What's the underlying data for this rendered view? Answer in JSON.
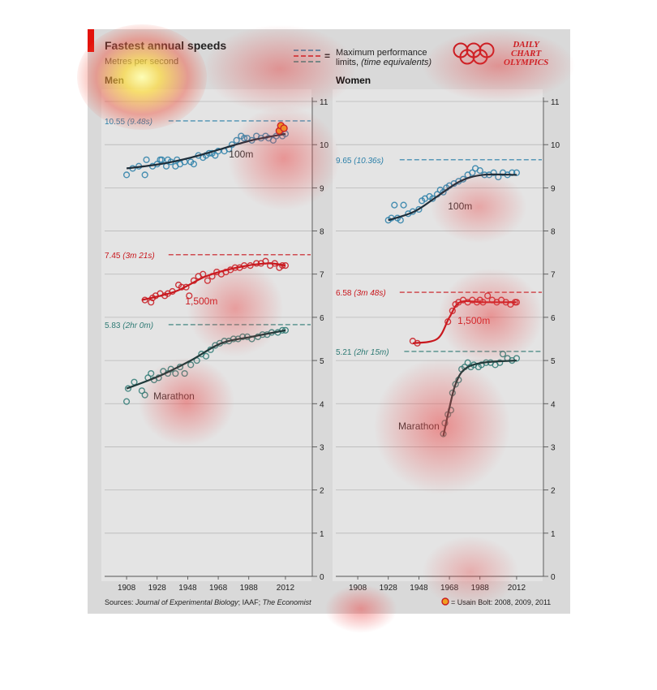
{
  "header": {
    "title": "Fastest annual speeds",
    "subtitle": "Metres per second",
    "men_label": "Men",
    "women_label": "Women"
  },
  "legend": {
    "equals": "=",
    "line1": "Maximum performance",
    "line2_prefix": "limits, ",
    "line2_italic": "(time equivalents)",
    "dash_colors": [
      "#2a7fa8",
      "#c8181e",
      "#2a8a86"
    ]
  },
  "logo": {
    "line1": "DAILY",
    "line2": "CHART",
    "line3": "OLYMPICS",
    "ring_color": "#c8181e"
  },
  "footer": {
    "source_prefix": "Sources: ",
    "source_italic1": "Journal of Experimental Biology",
    "source_mid": "; IAAF; ",
    "source_italic2": "The Economist",
    "bolt_note": "= Usain Bolt: 2008, 2009, 2011"
  },
  "colors": {
    "sprint": "#2a7fa8",
    "middle": "#c8181e",
    "marathon": "#2e7a74",
    "trend": "#1e2e3a",
    "bolt_fill": "#f0a020"
  },
  "chart_data": [
    {
      "type": "scatter",
      "panel": "Men",
      "xlim": [
        1900,
        2020
      ],
      "ylim": [
        0,
        11
      ],
      "x_ticks": [
        1908,
        1928,
        1948,
        1968,
        1988,
        2012
      ],
      "y_ticks": [
        0,
        1,
        2,
        3,
        4,
        5,
        6,
        7,
        8,
        9,
        10,
        11
      ],
      "limits": [
        {
          "event": "100m",
          "value": 10.55,
          "label": "10.55",
          "time": "(9.48s)",
          "color": "#2a7fa8"
        },
        {
          "event": "1,500m",
          "value": 7.45,
          "label": "7.45",
          "time": "(3m 21s)",
          "color": "#c8181e"
        },
        {
          "event": "Marathon",
          "value": 5.83,
          "label": "5.83",
          "time": "(2hr 0m)",
          "color": "#2e7a74"
        }
      ],
      "series": [
        {
          "name": "100m",
          "color": "#2a7fa8",
          "points": [
            [
              1908,
              9.3
            ],
            [
              1912,
              9.45
            ],
            [
              1916,
              9.5
            ],
            [
              1920,
              9.3
            ],
            [
              1921,
              9.65
            ],
            [
              1925,
              9.5
            ],
            [
              1928,
              9.55
            ],
            [
              1930,
              9.65
            ],
            [
              1931,
              9.65
            ],
            [
              1934,
              9.5
            ],
            [
              1935,
              9.65
            ],
            [
              1937,
              9.6
            ],
            [
              1940,
              9.5
            ],
            [
              1941,
              9.65
            ],
            [
              1943,
              9.55
            ],
            [
              1946,
              9.6
            ],
            [
              1950,
              9.6
            ],
            [
              1952,
              9.55
            ],
            [
              1955,
              9.75
            ],
            [
              1958,
              9.7
            ],
            [
              1960,
              9.75
            ],
            [
              1962,
              9.8
            ],
            [
              1964,
              9.8
            ],
            [
              1966,
              9.75
            ],
            [
              1968,
              9.85
            ],
            [
              1972,
              9.85
            ],
            [
              1975,
              9.9
            ],
            [
              1977,
              10.0
            ],
            [
              1980,
              10.1
            ],
            [
              1983,
              10.2
            ],
            [
              1985,
              10.15
            ],
            [
              1987,
              10.15
            ],
            [
              1990,
              10.1
            ],
            [
              1993,
              10.2
            ],
            [
              1996,
              10.15
            ],
            [
              1999,
              10.2
            ],
            [
              2001,
              10.15
            ],
            [
              2004,
              10.1
            ],
            [
              2006,
              10.2
            ],
            [
              2010,
              10.2
            ],
            [
              2012,
              10.25
            ]
          ],
          "label_x": 1983,
          "label_y": 9.7,
          "trend": [
            [
              1908,
              9.45
            ],
            [
              1930,
              9.55
            ],
            [
              1950,
              9.7
            ],
            [
              1970,
              9.9
            ],
            [
              1990,
              10.1
            ],
            [
              2012,
              10.25
            ]
          ]
        },
        {
          "name": "1,500m",
          "color": "#c8181e",
          "points": [
            [
              1920,
              6.4
            ],
            [
              1924,
              6.35
            ],
            [
              1925,
              6.45
            ],
            [
              1927,
              6.5
            ],
            [
              1930,
              6.55
            ],
            [
              1933,
              6.5
            ],
            [
              1935,
              6.55
            ],
            [
              1938,
              6.6
            ],
            [
              1942,
              6.75
            ],
            [
              1944,
              6.7
            ],
            [
              1947,
              6.7
            ],
            [
              1949,
              6.5
            ],
            [
              1952,
              6.85
            ],
            [
              1955,
              6.95
            ],
            [
              1958,
              7.0
            ],
            [
              1961,
              6.85
            ],
            [
              1964,
              6.95
            ],
            [
              1967,
              7.05
            ],
            [
              1970,
              7.0
            ],
            [
              1973,
              7.05
            ],
            [
              1976,
              7.1
            ],
            [
              1979,
              7.15
            ],
            [
              1982,
              7.15
            ],
            [
              1985,
              7.2
            ],
            [
              1989,
              7.2
            ],
            [
              1993,
              7.25
            ],
            [
              1996,
              7.25
            ],
            [
              1999,
              7.3
            ],
            [
              2002,
              7.2
            ],
            [
              2005,
              7.25
            ],
            [
              2008,
              7.15
            ],
            [
              2010,
              7.2
            ],
            [
              2012,
              7.2
            ]
          ],
          "label_x": 1957,
          "label_y": 6.3,
          "trend": [
            [
              1918,
              6.4
            ],
            [
              1940,
              6.6
            ],
            [
              1960,
              6.95
            ],
            [
              1980,
              7.15
            ],
            [
              2000,
              7.25
            ],
            [
              2012,
              7.2
            ]
          ]
        },
        {
          "name": "Marathon",
          "color": "#2e7a74",
          "points": [
            [
              1908,
              4.05
            ],
            [
              1909,
              4.35
            ],
            [
              1913,
              4.5
            ],
            [
              1918,
              4.3
            ],
            [
              1920,
              4.2
            ],
            [
              1922,
              4.6
            ],
            [
              1924,
              4.7
            ],
            [
              1926,
              4.55
            ],
            [
              1929,
              4.6
            ],
            [
              1932,
              4.75
            ],
            [
              1935,
              4.7
            ],
            [
              1937,
              4.8
            ],
            [
              1940,
              4.7
            ],
            [
              1943,
              4.85
            ],
            [
              1946,
              4.7
            ],
            [
              1950,
              4.9
            ],
            [
              1954,
              5.0
            ],
            [
              1957,
              5.15
            ],
            [
              1960,
              5.1
            ],
            [
              1963,
              5.25
            ],
            [
              1966,
              5.35
            ],
            [
              1969,
              5.4
            ],
            [
              1972,
              5.45
            ],
            [
              1975,
              5.45
            ],
            [
              1978,
              5.5
            ],
            [
              1981,
              5.5
            ],
            [
              1984,
              5.55
            ],
            [
              1987,
              5.55
            ],
            [
              1990,
              5.5
            ],
            [
              1994,
              5.55
            ],
            [
              1997,
              5.6
            ],
            [
              2000,
              5.6
            ],
            [
              2003,
              5.65
            ],
            [
              2007,
              5.65
            ],
            [
              2010,
              5.7
            ],
            [
              2012,
              5.7
            ]
          ],
          "label_x": 1939,
          "label_y": 4.1,
          "trend": [
            [
              1908,
              4.35
            ],
            [
              1930,
              4.65
            ],
            [
              1950,
              5.0
            ],
            [
              1970,
              5.4
            ],
            [
              1990,
              5.55
            ],
            [
              2012,
              5.7
            ]
          ]
        }
      ],
      "highlight": {
        "name": "Usain Bolt",
        "points": [
          [
            2008,
            10.32
          ],
          [
            2009,
            10.44
          ],
          [
            2011,
            10.38
          ]
        ]
      }
    },
    {
      "type": "scatter",
      "panel": "Women",
      "xlim": [
        1900,
        2020
      ],
      "ylim": [
        0,
        11
      ],
      "x_ticks": [
        1908,
        1928,
        1948,
        1968,
        1988,
        2012
      ],
      "y_ticks": [
        0,
        1,
        2,
        3,
        4,
        5,
        6,
        7,
        8,
        9,
        10,
        11
      ],
      "limits": [
        {
          "event": "100m",
          "value": 9.65,
          "label": "9.65",
          "time": "(10.36s)",
          "color": "#2a7fa8"
        },
        {
          "event": "1,500m",
          "value": 6.58,
          "label": "6.58",
          "time": "(3m 48s)",
          "color": "#c8181e"
        },
        {
          "event": "Marathon",
          "value": 5.21,
          "label": "5.21",
          "time": "(2hr 15m)",
          "color": "#2e7a74"
        }
      ],
      "series": [
        {
          "name": "100m",
          "color": "#2a7fa8",
          "points": [
            [
              1928,
              8.25
            ],
            [
              1930,
              8.3
            ],
            [
              1932,
              8.6
            ],
            [
              1934,
              8.3
            ],
            [
              1936,
              8.25
            ],
            [
              1938,
              8.6
            ],
            [
              1941,
              8.4
            ],
            [
              1944,
              8.45
            ],
            [
              1948,
              8.5
            ],
            [
              1950,
              8.7
            ],
            [
              1952,
              8.75
            ],
            [
              1955,
              8.8
            ],
            [
              1957,
              8.75
            ],
            [
              1960,
              8.85
            ],
            [
              1962,
              8.95
            ],
            [
              1964,
              8.9
            ],
            [
              1966,
              9.0
            ],
            [
              1968,
              9.05
            ],
            [
              1971,
              9.1
            ],
            [
              1974,
              9.15
            ],
            [
              1977,
              9.2
            ],
            [
              1980,
              9.3
            ],
            [
              1983,
              9.35
            ],
            [
              1985,
              9.45
            ],
            [
              1988,
              9.4
            ],
            [
              1991,
              9.3
            ],
            [
              1994,
              9.3
            ],
            [
              1997,
              9.35
            ],
            [
              2000,
              9.25
            ],
            [
              2003,
              9.35
            ],
            [
              2006,
              9.3
            ],
            [
              2009,
              9.35
            ],
            [
              2012,
              9.35
            ]
          ],
          "label_x": 1975,
          "label_y": 8.5,
          "trend": [
            [
              1928,
              8.25
            ],
            [
              1945,
              8.45
            ],
            [
              1960,
              8.8
            ],
            [
              1975,
              9.15
            ],
            [
              1990,
              9.3
            ],
            [
              2012,
              9.3
            ]
          ]
        },
        {
          "name": "1,500m",
          "color": "#c8181e",
          "points": [
            [
              1944,
              5.45
            ],
            [
              1947,
              5.4
            ],
            [
              1967,
              5.9
            ],
            [
              1970,
              6.15
            ],
            [
              1972,
              6.3
            ],
            [
              1974,
              6.35
            ],
            [
              1977,
              6.4
            ],
            [
              1980,
              6.35
            ],
            [
              1983,
              6.4
            ],
            [
              1986,
              6.35
            ],
            [
              1988,
              6.4
            ],
            [
              1990,
              6.35
            ],
            [
              1993,
              6.5
            ],
            [
              1996,
              6.4
            ],
            [
              1999,
              6.35
            ],
            [
              2002,
              6.4
            ],
            [
              2005,
              6.35
            ],
            [
              2008,
              6.3
            ],
            [
              2011,
              6.35
            ],
            [
              2012,
              6.35
            ]
          ],
          "label_x": 1984,
          "label_y": 5.85,
          "trend": [
            [
              1944,
              5.4
            ],
            [
              1960,
              5.5
            ],
            [
              1968,
              6.0
            ],
            [
              1975,
              6.35
            ],
            [
              1990,
              6.35
            ],
            [
              2012,
              6.35
            ]
          ]
        },
        {
          "name": "Marathon",
          "color": "#2e7a74",
          "points": [
            [
              1964,
              3.3
            ],
            [
              1965,
              3.55
            ],
            [
              1967,
              3.75
            ],
            [
              1969,
              3.85
            ],
            [
              1970,
              4.25
            ],
            [
              1972,
              4.45
            ],
            [
              1974,
              4.55
            ],
            [
              1976,
              4.8
            ],
            [
              1978,
              4.85
            ],
            [
              1980,
              4.95
            ],
            [
              1982,
              4.85
            ],
            [
              1984,
              4.9
            ],
            [
              1987,
              4.85
            ],
            [
              1989,
              4.9
            ],
            [
              1992,
              4.95
            ],
            [
              1995,
              4.95
            ],
            [
              1998,
              4.9
            ],
            [
              2001,
              4.95
            ],
            [
              2003,
              5.15
            ],
            [
              2006,
              5.05
            ],
            [
              2009,
              5.0
            ],
            [
              2012,
              5.05
            ]
          ],
          "label_x": 1948,
          "label_y": 3.4,
          "trend": [
            [
              1964,
              3.25
            ],
            [
              1968,
              3.9
            ],
            [
              1972,
              4.45
            ],
            [
              1978,
              4.8
            ],
            [
              1990,
              4.95
            ],
            [
              2012,
              5.0
            ]
          ]
        }
      ]
    }
  ]
}
